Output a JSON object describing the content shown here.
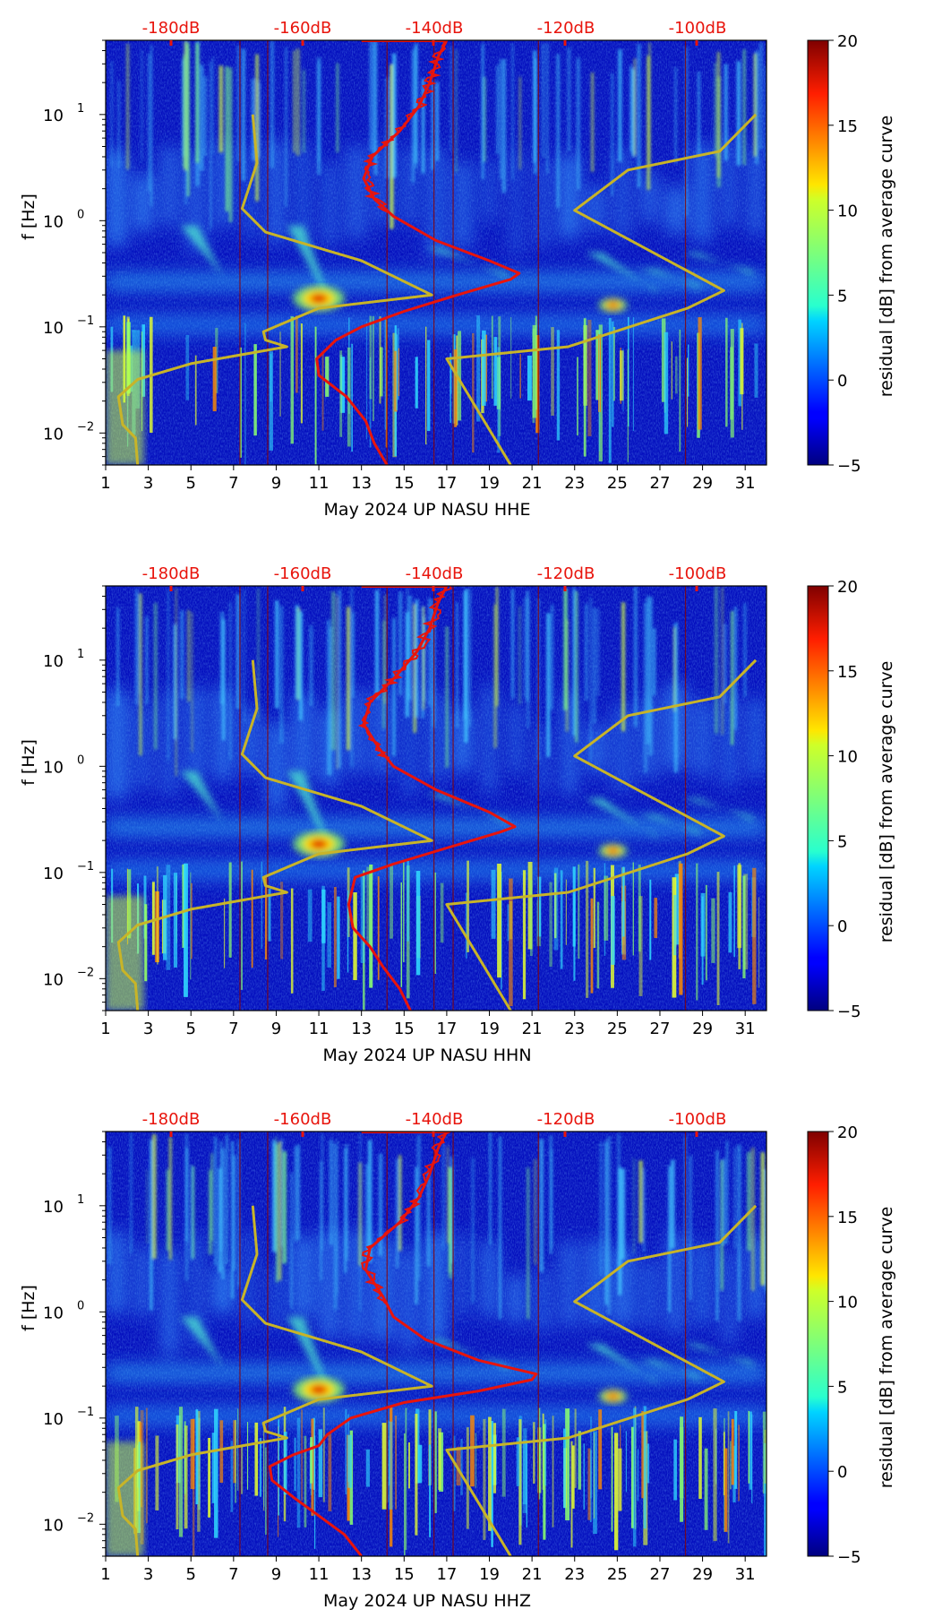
{
  "chart_data": [
    {
      "type": "heatmap",
      "xlabel": "May 2024 UP NASU  HHE",
      "ylabel": "f [Hz]",
      "x_ticks": [
        "1",
        "3",
        "5",
        "7",
        "9",
        "11",
        "13",
        "15",
        "17",
        "19",
        "21",
        "23",
        "25",
        "27",
        "29",
        "31"
      ],
      "y_ticks": [
        {
          "base": "10",
          "exp": "1",
          "value": 10
        },
        {
          "base": "10",
          "exp": "0",
          "value": 1
        },
        {
          "base": "10",
          "exp": "−1",
          "value": 0.1
        },
        {
          "base": "10",
          "exp": "−2",
          "value": 0.01
        }
      ],
      "y_scale": "log",
      "xlim": [
        1,
        32
      ],
      "ylim": [
        0.005,
        50
      ],
      "top_labels": [
        "-180dB",
        "-160dB",
        "-140dB",
        "-120dB",
        "-100dB"
      ],
      "colorbar": {
        "label": "residual [dB] from average curve",
        "ticks": [
          "20",
          "15",
          "10",
          "5",
          "0",
          "−5"
        ],
        "range": [
          -5,
          20
        ],
        "colormap": "jet"
      },
      "series": [
        {
          "name": "",
          "color": "#e8140c",
          "values": [
            [
              14.2,
              0.005
            ],
            [
              13.6,
              0.008
            ],
            [
              13.2,
              0.013
            ],
            [
              12.3,
              0.022
            ],
            [
              11.0,
              0.035
            ],
            [
              10.9,
              0.05
            ],
            [
              11.8,
              0.075
            ],
            [
              13.0,
              0.1
            ],
            [
              15.0,
              0.14
            ],
            [
              17.5,
              0.2
            ],
            [
              20.0,
              0.28
            ],
            [
              20.4,
              0.32
            ],
            [
              19.0,
              0.42
            ],
            [
              16.5,
              0.65
            ],
            [
              14.5,
              1.1
            ],
            [
              13.6,
              1.6
            ],
            [
              13.1,
              2.5
            ],
            [
              13.5,
              4.0
            ],
            [
              14.8,
              7.0
            ],
            [
              15.7,
              12
            ],
            [
              16.2,
              20
            ],
            [
              16.6,
              35
            ],
            [
              17.0,
              50
            ]
          ]
        },
        {
          "name": "",
          "color": "#c8b428",
          "values": [
            [
              2.5,
              0.005
            ],
            [
              2.4,
              0.009
            ],
            [
              1.8,
              0.012
            ],
            [
              1.6,
              0.022
            ],
            [
              2.5,
              0.032
            ],
            [
              5.0,
              0.045
            ],
            [
              9.5,
              0.065
            ],
            [
              8.5,
              0.075
            ],
            [
              8.4,
              0.09
            ],
            [
              11.0,
              0.15
            ],
            [
              16.3,
              0.2
            ],
            [
              13.0,
              0.42
            ],
            [
              8.5,
              0.78
            ],
            [
              7.4,
              1.3
            ],
            [
              8.1,
              3.5
            ],
            [
              7.9,
              10.0
            ]
          ]
        },
        {
          "name": "",
          "color": "#c8b428",
          "values": [
            [
              20.0,
              0.005
            ],
            [
              17.0,
              0.05
            ],
            [
              22.7,
              0.065
            ],
            [
              28.3,
              0.15
            ],
            [
              30.0,
              0.22
            ],
            [
              23.0,
              1.25
            ],
            [
              25.5,
              3.0
            ],
            [
              29.8,
              4.5
            ],
            [
              31.5,
              10.0
            ]
          ]
        }
      ]
    },
    {
      "type": "heatmap",
      "xlabel": "May 2024 UP NASU  HHN",
      "ylabel": "f [Hz]",
      "x_ticks": [
        "1",
        "3",
        "5",
        "7",
        "9",
        "11",
        "13",
        "15",
        "17",
        "19",
        "21",
        "23",
        "25",
        "27",
        "29",
        "31"
      ],
      "y_ticks": [
        {
          "base": "10",
          "exp": "1",
          "value": 10
        },
        {
          "base": "10",
          "exp": "0",
          "value": 1
        },
        {
          "base": "10",
          "exp": "−1",
          "value": 0.1
        },
        {
          "base": "10",
          "exp": "−2",
          "value": 0.01
        }
      ],
      "y_scale": "log",
      "xlim": [
        1,
        32
      ],
      "ylim": [
        0.005,
        50
      ],
      "top_labels": [
        "-180dB",
        "-160dB",
        "-140dB",
        "-120dB",
        "-100dB"
      ],
      "colorbar": {
        "label": "residual [dB] from average curve",
        "ticks": [
          "20",
          "15",
          "10",
          "5",
          "0",
          "−5"
        ],
        "range": [
          -5,
          20
        ],
        "colormap": "jet"
      },
      "series": [
        {
          "name": "",
          "color": "#e8140c",
          "values": [
            [
              15.3,
              0.005
            ],
            [
              14.8,
              0.008
            ],
            [
              14.0,
              0.013
            ],
            [
              13.4,
              0.02
            ],
            [
              12.6,
              0.03
            ],
            [
              12.4,
              0.05
            ],
            [
              12.7,
              0.09
            ],
            [
              14.5,
              0.12
            ],
            [
              17.0,
              0.17
            ],
            [
              19.5,
              0.24
            ],
            [
              20.2,
              0.27
            ],
            [
              19.0,
              0.37
            ],
            [
              16.5,
              0.6
            ],
            [
              14.5,
              1.0
            ],
            [
              13.8,
              1.5
            ],
            [
              13.1,
              2.5
            ],
            [
              13.4,
              4.0
            ],
            [
              14.6,
              7.0
            ],
            [
              15.6,
              12
            ],
            [
              16.2,
              20
            ],
            [
              16.6,
              35
            ],
            [
              17.0,
              50
            ]
          ]
        },
        {
          "name": "",
          "color": "#c8b428",
          "values": [
            [
              2.5,
              0.005
            ],
            [
              2.4,
              0.009
            ],
            [
              1.8,
              0.012
            ],
            [
              1.6,
              0.022
            ],
            [
              2.5,
              0.032
            ],
            [
              5.0,
              0.045
            ],
            [
              9.5,
              0.065
            ],
            [
              8.5,
              0.075
            ],
            [
              8.4,
              0.09
            ],
            [
              11.0,
              0.15
            ],
            [
              16.3,
              0.2
            ],
            [
              13.0,
              0.42
            ],
            [
              8.5,
              0.78
            ],
            [
              7.4,
              1.3
            ],
            [
              8.1,
              3.5
            ],
            [
              7.9,
              10.0
            ]
          ]
        },
        {
          "name": "",
          "color": "#c8b428",
          "values": [
            [
              20.0,
              0.005
            ],
            [
              17.0,
              0.05
            ],
            [
              22.7,
              0.065
            ],
            [
              28.3,
              0.15
            ],
            [
              30.0,
              0.22
            ],
            [
              23.0,
              1.25
            ],
            [
              25.5,
              3.0
            ],
            [
              29.8,
              4.5
            ],
            [
              31.5,
              10.0
            ]
          ]
        }
      ]
    },
    {
      "type": "heatmap",
      "xlabel": "May 2024 UP NASU  HHZ",
      "ylabel": "f [Hz]",
      "x_ticks": [
        "1",
        "3",
        "5",
        "7",
        "9",
        "11",
        "13",
        "15",
        "17",
        "19",
        "21",
        "23",
        "25",
        "27",
        "29",
        "31"
      ],
      "y_ticks": [
        {
          "base": "10",
          "exp": "1",
          "value": 10
        },
        {
          "base": "10",
          "exp": "0",
          "value": 1
        },
        {
          "base": "10",
          "exp": "−1",
          "value": 0.1
        },
        {
          "base": "10",
          "exp": "−2",
          "value": 0.01
        }
      ],
      "y_scale": "log",
      "xlim": [
        1,
        32
      ],
      "ylim": [
        0.005,
        50
      ],
      "top_labels": [
        "-180dB",
        "-160dB",
        "-140dB",
        "-120dB",
        "-100dB"
      ],
      "colorbar": {
        "label": "residual [dB] from average curve",
        "ticks": [
          "20",
          "15",
          "10",
          "5",
          "0",
          "−5"
        ],
        "range": [
          -5,
          20
        ],
        "colormap": "jet"
      },
      "series": [
        {
          "name": "",
          "color": "#e8140c",
          "values": [
            [
              13.0,
              0.005
            ],
            [
              12.2,
              0.008
            ],
            [
              11.0,
              0.012
            ],
            [
              9.8,
              0.018
            ],
            [
              8.8,
              0.026
            ],
            [
              8.7,
              0.035
            ],
            [
              9.8,
              0.045
            ],
            [
              11.0,
              0.055
            ],
            [
              11.4,
              0.07
            ],
            [
              12.5,
              0.1
            ],
            [
              15.0,
              0.14
            ],
            [
              18.5,
              0.18
            ],
            [
              21.0,
              0.23
            ],
            [
              21.2,
              0.26
            ],
            [
              18.5,
              0.35
            ],
            [
              16.0,
              0.55
            ],
            [
              14.5,
              0.9
            ],
            [
              14.0,
              1.4
            ],
            [
              13.2,
              2.5
            ],
            [
              13.4,
              4.0
            ],
            [
              14.8,
              7.0
            ],
            [
              15.7,
              12
            ],
            [
              16.2,
              20
            ],
            [
              16.6,
              35
            ],
            [
              17.0,
              50
            ]
          ]
        },
        {
          "name": "",
          "color": "#c8b428",
          "values": [
            [
              2.5,
              0.005
            ],
            [
              2.4,
              0.009
            ],
            [
              1.8,
              0.012
            ],
            [
              1.6,
              0.022
            ],
            [
              2.5,
              0.032
            ],
            [
              5.0,
              0.045
            ],
            [
              9.5,
              0.065
            ],
            [
              8.5,
              0.075
            ],
            [
              8.4,
              0.09
            ],
            [
              11.0,
              0.15
            ],
            [
              16.3,
              0.2
            ],
            [
              13.0,
              0.42
            ],
            [
              8.5,
              0.78
            ],
            [
              7.4,
              1.3
            ],
            [
              8.1,
              3.5
            ],
            [
              7.9,
              10.0
            ]
          ]
        },
        {
          "name": "",
          "color": "#c8b428",
          "values": [
            [
              20.0,
              0.005
            ],
            [
              17.0,
              0.05
            ],
            [
              22.7,
              0.065
            ],
            [
              28.3,
              0.15
            ],
            [
              30.0,
              0.22
            ],
            [
              23.0,
              1.25
            ],
            [
              25.5,
              3.0
            ],
            [
              29.8,
              4.5
            ],
            [
              31.5,
              10.0
            ]
          ]
        }
      ]
    }
  ]
}
